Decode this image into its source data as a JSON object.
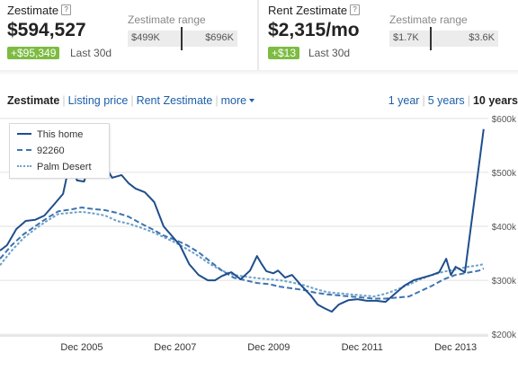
{
  "zestimate": {
    "title": "Zestimate",
    "help_icon": "?",
    "value": "$594,527",
    "change": "+$95,349",
    "change_period": "Last 30d",
    "range_title": "Zestimate range",
    "range_low": "$499K",
    "range_high": "$696K"
  },
  "rent": {
    "title": "Rent Zestimate",
    "help_icon": "?",
    "value": "$2,315/mo",
    "change": "+$13",
    "change_period": "Last 30d",
    "range_title": "Zestimate range",
    "range_low": "$1.7K",
    "range_high": "$3.6K"
  },
  "tabs": [
    "Zestimate",
    "Listing price",
    "Rent Zestimate",
    "more"
  ],
  "time_ranges": [
    "1 year",
    "5 years",
    "10 years"
  ],
  "colors": {
    "accent": "#1c5fa8",
    "badge_green": "#7dbb42",
    "this_home": "#1f4e8c",
    "zip": "#3f74b0",
    "city": "#6ba0c8"
  },
  "chart_data": {
    "type": "line",
    "x_tick_labels": [
      "Dec 2005",
      "Dec 2007",
      "Dec 2009",
      "Dec 2011",
      "Dec 2013"
    ],
    "x_ticks": [
      2006,
      2008,
      2010,
      2012,
      2014
    ],
    "y_tick_labels": [
      "$600k",
      "$500k",
      "$400k",
      "$300k",
      "$200k"
    ],
    "y_ticks": [
      600,
      500,
      400,
      300,
      200
    ],
    "xlim": [
      2004.25,
      2014.7
    ],
    "ylim": [
      197,
      613
    ],
    "y_unit": "thousand USD",
    "grid": "horizontal",
    "legend_position": "top-left",
    "series": [
      {
        "name": "This home",
        "style": "solid",
        "x": [
          2004.25,
          2004.4,
          2004.6,
          2004.8,
          2005.0,
          2005.2,
          2005.4,
          2005.6,
          2005.75,
          2005.9,
          2006.05,
          2006.2,
          2006.35,
          2006.5,
          2006.65,
          2006.85,
          2007.0,
          2007.15,
          2007.35,
          2007.55,
          2007.75,
          2007.9,
          2008.1,
          2008.3,
          2008.5,
          2008.7,
          2008.85,
          2009.0,
          2009.2,
          2009.4,
          2009.6,
          2009.75,
          2009.85,
          2009.95,
          2010.1,
          2010.2,
          2010.35,
          2010.5,
          2010.7,
          2010.9,
          2011.05,
          2011.2,
          2011.35,
          2011.5,
          2011.7,
          2011.9,
          2012.1,
          2012.3,
          2012.5,
          2012.7,
          2012.9,
          2013.1,
          2013.3,
          2013.5,
          2013.65,
          2013.8,
          2013.9,
          2014.0,
          2014.2,
          2014.45,
          2014.6
        ],
        "y": [
          355,
          365,
          395,
          410,
          412,
          420,
          440,
          460,
          520,
          485,
          483,
          525,
          522,
          512,
          490,
          495,
          480,
          470,
          463,
          445,
          400,
          385,
          365,
          330,
          310,
          300,
          300,
          308,
          315,
          302,
          318,
          345,
          330,
          317,
          313,
          318,
          305,
          310,
          290,
          272,
          255,
          248,
          242,
          255,
          263,
          265,
          262,
          262,
          260,
          275,
          290,
          300,
          305,
          310,
          315,
          340,
          310,
          325,
          315,
          480,
          580
        ]
      },
      {
        "name": "92260",
        "style": "dashed",
        "x": [
          2004.25,
          2004.5,
          2004.75,
          2005.0,
          2005.25,
          2005.5,
          2005.75,
          2006.0,
          2006.25,
          2006.5,
          2006.75,
          2007.0,
          2007.25,
          2007.5,
          2007.75,
          2008.0,
          2008.25,
          2008.5,
          2008.75,
          2009.0,
          2009.25,
          2009.5,
          2009.75,
          2010.0,
          2010.25,
          2010.5,
          2010.75,
          2011.0,
          2011.25,
          2011.5,
          2011.75,
          2012.0,
          2012.25,
          2012.5,
          2012.75,
          2013.0,
          2013.25,
          2013.5,
          2013.75,
          2014.0,
          2014.25,
          2014.5,
          2014.6
        ],
        "y": [
          340,
          365,
          385,
          400,
          415,
          428,
          431,
          435,
          432,
          430,
          425,
          418,
          406,
          395,
          383,
          375,
          365,
          352,
          335,
          318,
          305,
          300,
          295,
          293,
          288,
          285,
          282,
          277,
          274,
          272,
          270,
          268,
          266,
          266,
          268,
          270,
          280,
          290,
          302,
          310,
          314,
          318,
          322
        ]
      },
      {
        "name": "Palm Desert",
        "style": "dotted",
        "x": [
          2004.25,
          2004.5,
          2004.75,
          2005.0,
          2005.25,
          2005.5,
          2005.75,
          2006.0,
          2006.25,
          2006.5,
          2006.75,
          2007.0,
          2007.25,
          2007.5,
          2007.75,
          2008.0,
          2008.25,
          2008.5,
          2008.75,
          2009.0,
          2009.25,
          2009.5,
          2009.75,
          2010.0,
          2010.25,
          2010.5,
          2010.75,
          2011.0,
          2011.25,
          2011.5,
          2011.75,
          2012.0,
          2012.25,
          2012.5,
          2012.75,
          2013.0,
          2013.25,
          2013.5,
          2013.75,
          2014.0,
          2014.25,
          2014.5,
          2014.6
        ],
        "y": [
          328,
          355,
          378,
          395,
          410,
          423,
          425,
          427,
          424,
          420,
          410,
          405,
          398,
          390,
          380,
          370,
          358,
          345,
          330,
          318,
          310,
          307,
          304,
          302,
          300,
          296,
          291,
          284,
          278,
          276,
          274,
          272,
          270,
          275,
          283,
          292,
          302,
          310,
          316,
          320,
          325,
          328,
          330
        ]
      }
    ]
  }
}
